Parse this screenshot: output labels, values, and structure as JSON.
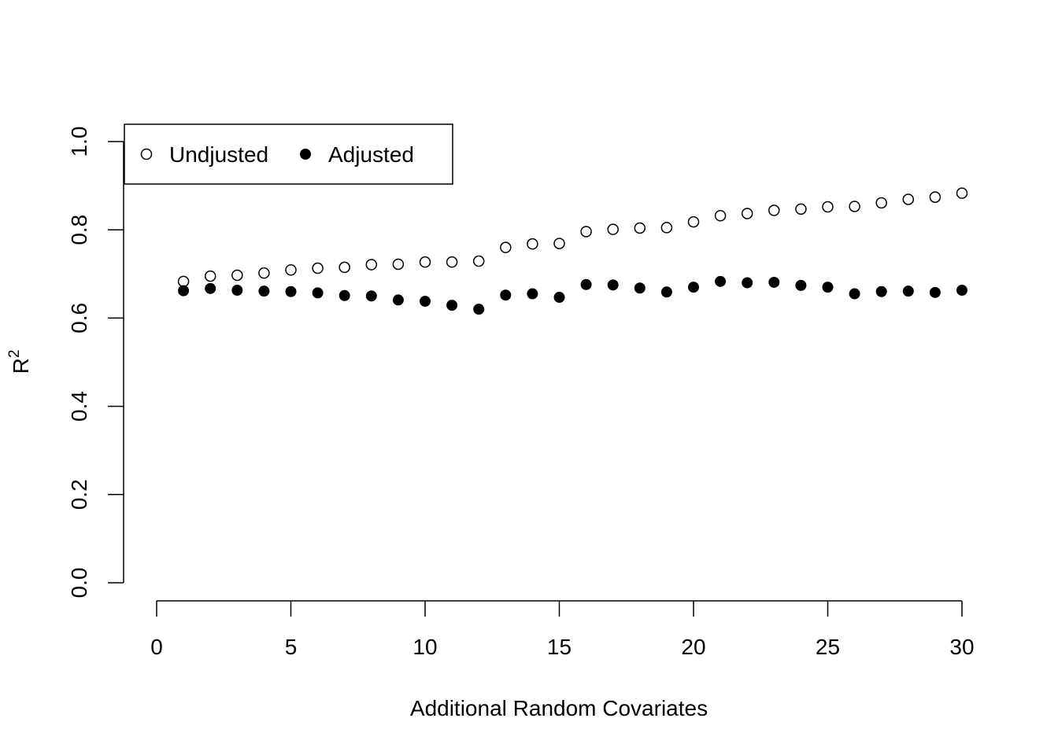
{
  "chart_data": {
    "type": "scatter",
    "title": "",
    "xlabel": "Additional Random Covariates",
    "ylabel_base": "R",
    "ylabel_sup": "2",
    "xlim": [
      0,
      30
    ],
    "ylim": [
      0,
      1
    ],
    "xticks": [
      0,
      5,
      10,
      15,
      20,
      25,
      30
    ],
    "xtick_labels": [
      "0",
      "5",
      "10",
      "15",
      "20",
      "25",
      "30"
    ],
    "yticks": [
      0,
      0.2,
      0.4,
      0.6,
      0.8,
      1.0
    ],
    "ytick_labels": [
      "0.0",
      "0.2",
      "0.4",
      "0.6",
      "0.8",
      "1.0"
    ],
    "grid": false,
    "legend_position": "top-left",
    "x": [
      1,
      2,
      3,
      4,
      5,
      6,
      7,
      8,
      9,
      10,
      11,
      12,
      13,
      14,
      15,
      16,
      17,
      18,
      19,
      20,
      21,
      22,
      23,
      24,
      25,
      26,
      27,
      28,
      29,
      30
    ],
    "series": [
      {
        "name": "Undjusted",
        "marker": "open-circle",
        "values": [
          0.683,
          0.695,
          0.697,
          0.702,
          0.709,
          0.713,
          0.715,
          0.721,
          0.722,
          0.727,
          0.727,
          0.729,
          0.76,
          0.768,
          0.769,
          0.796,
          0.801,
          0.804,
          0.805,
          0.818,
          0.832,
          0.837,
          0.844,
          0.847,
          0.852,
          0.853,
          0.861,
          0.869,
          0.874,
          0.883
        ]
      },
      {
        "name": "Adjusted",
        "marker": "filled-circle",
        "values": [
          0.662,
          0.667,
          0.663,
          0.661,
          0.66,
          0.657,
          0.651,
          0.65,
          0.641,
          0.638,
          0.629,
          0.62,
          0.652,
          0.655,
          0.647,
          0.676,
          0.675,
          0.668,
          0.659,
          0.67,
          0.683,
          0.68,
          0.681,
          0.674,
          0.67,
          0.655,
          0.66,
          0.661,
          0.658,
          0.663
        ]
      }
    ]
  }
}
